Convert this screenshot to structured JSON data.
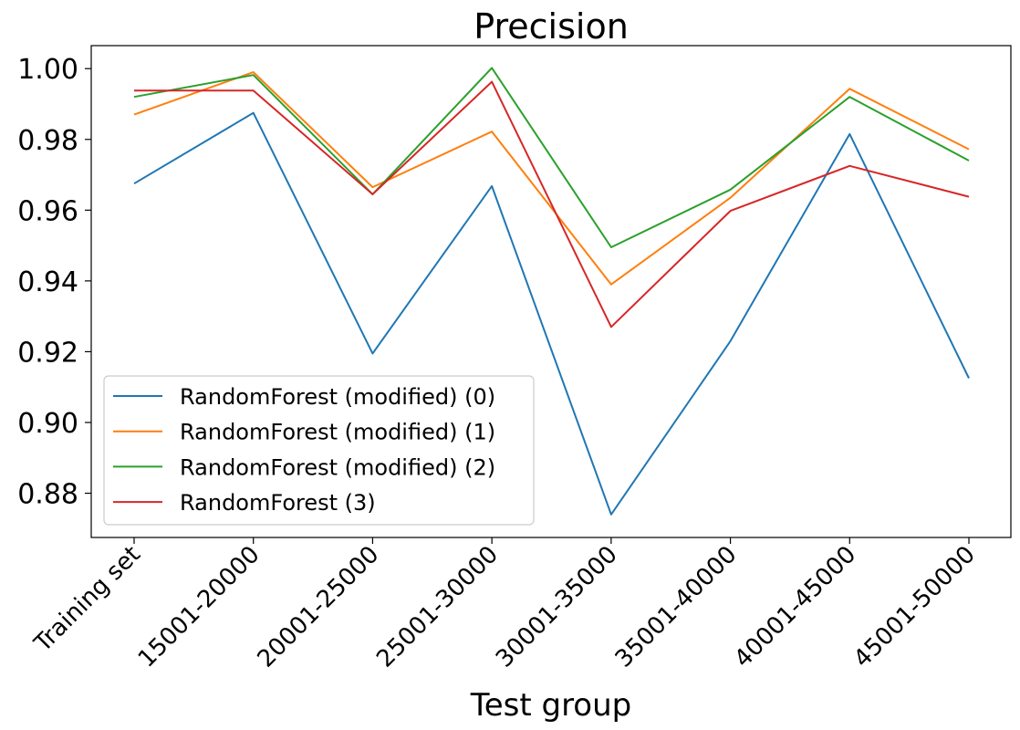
{
  "chart_data": {
    "type": "line",
    "title": "Precision",
    "xlabel": "Test group",
    "ylabel": "",
    "categories": [
      "Training set",
      "15001-20000",
      "20001-25000",
      "25001-30000",
      "30001-35000",
      "35001-40000",
      "40001-45000",
      "45001-50000"
    ],
    "ylim": [
      0.8675,
      1.0065
    ],
    "yticks": [
      0.88,
      0.9,
      0.92,
      0.94,
      0.96,
      0.98,
      1.0
    ],
    "ytick_labels": [
      "0.88",
      "0.90",
      "0.92",
      "0.94",
      "0.96",
      "0.98",
      "1.00"
    ],
    "grid": false,
    "legend_position": "lower-left",
    "series": [
      {
        "name": "RandomForest (modified) (0)",
        "color": "#1f77b4",
        "values": [
          0.9675,
          0.9875,
          0.9195,
          0.9668,
          0.874,
          0.923,
          0.9815,
          0.9125
        ]
      },
      {
        "name": "RandomForest (modified) (1)",
        "color": "#ff7f0e",
        "values": [
          0.987,
          0.999,
          0.9665,
          0.9822,
          0.939,
          0.9635,
          0.9943,
          0.9772
        ]
      },
      {
        "name": "RandomForest (modified) (2)",
        "color": "#2ca02c",
        "values": [
          0.992,
          0.9982,
          0.9645,
          1.0002,
          0.9495,
          0.9658,
          0.992,
          0.974
        ]
      },
      {
        "name": "RandomForest (3)",
        "color": "#d62728",
        "values": [
          0.9938,
          0.9938,
          0.9645,
          0.9963,
          0.927,
          0.9598,
          0.9725,
          0.9638
        ]
      }
    ]
  }
}
